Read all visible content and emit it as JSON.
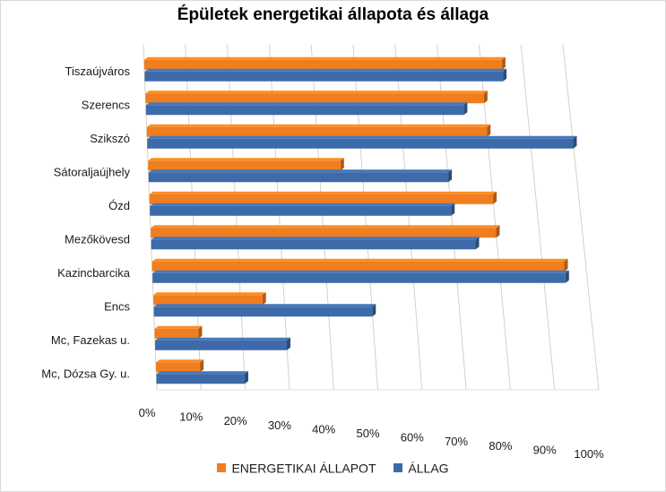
{
  "chart_data": {
    "type": "bar",
    "orientation": "horizontal",
    "title": "Épületek energetikai állapota és állaga",
    "categories": [
      "Tiszaújváros",
      "Szerencs",
      "Szikszó",
      "Sátoraljaújhely",
      "Ózd",
      "Mezőkövesd",
      "Kazincbarcika",
      "Encs",
      "Mc, Fazekas u.",
      "Mc, Dózsa Gy. u."
    ],
    "series": [
      {
        "name": "ENERGETIKAI ÁLLAPOT",
        "color": "#f07d1e",
        "values": [
          85,
          80,
          80,
          45,
          80,
          80,
          95,
          25,
          10,
          10
        ]
      },
      {
        "name": "ÁLLAG",
        "color": "#3d6aa8",
        "values": [
          85,
          75,
          100,
          70,
          70,
          75,
          95,
          50,
          30,
          20
        ]
      }
    ],
    "xlim": [
      0,
      100
    ],
    "tick_labels": [
      "0%",
      "10%",
      "20%",
      "30%",
      "40%",
      "50%",
      "60%",
      "70%",
      "80%",
      "90%",
      "100%"
    ],
    "grid": true,
    "legend_position": "bottom"
  }
}
